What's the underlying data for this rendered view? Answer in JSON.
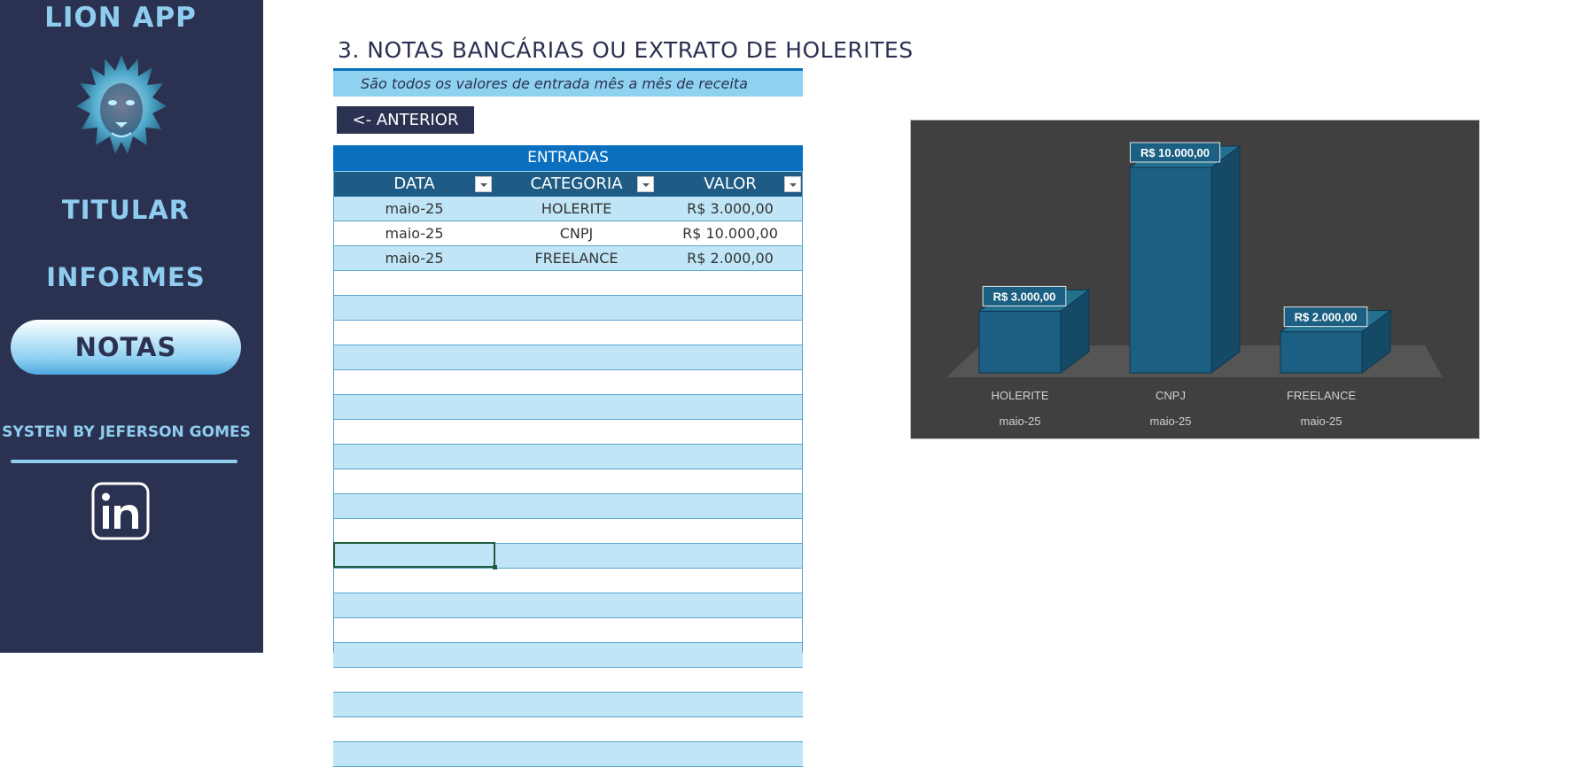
{
  "sidebar": {
    "app_title": "LION APP",
    "nav": {
      "titular": "TITULAR",
      "informes": "INFORMES",
      "notas": "NOTAS"
    },
    "credit": "SYSTEN BY JEFERSON GOMES",
    "logo_icon": "lion-logo-icon",
    "social_icon": "linkedin-icon"
  },
  "header": {
    "title": "3. NOTAS BANCÁRIAS OU EXTRATO DE HOLERITES",
    "subtitle": "São todos os valores de entrada mês a mês de receita",
    "back_button": "<- ANTERIOR"
  },
  "table": {
    "caption": "ENTRADAS",
    "columns": [
      "DATA",
      "CATEGORIA",
      "VALOR"
    ],
    "rows": [
      [
        "maio-25",
        "HOLERITE",
        "R$ 3.000,00"
      ],
      [
        "maio-25",
        "CNPJ",
        "R$ 10.000,00"
      ],
      [
        "maio-25",
        "FREELANCE",
        "R$ 2.000,00"
      ]
    ]
  },
  "chart_data": {
    "type": "bar",
    "categories": [
      "HOLERITE",
      "CNPJ",
      "FREELANCE"
    ],
    "subcategories": [
      "maio-25",
      "maio-25",
      "maio-25"
    ],
    "values": [
      3000,
      10000,
      2000
    ],
    "data_labels": [
      "R$ 3.000,00",
      "R$ 10.000,00",
      "R$ 2.000,00"
    ],
    "ylim": [
      0,
      10000
    ],
    "grid": false,
    "legend": "none",
    "colors": {
      "bar": "#1b5f82",
      "background": "#404040"
    }
  }
}
